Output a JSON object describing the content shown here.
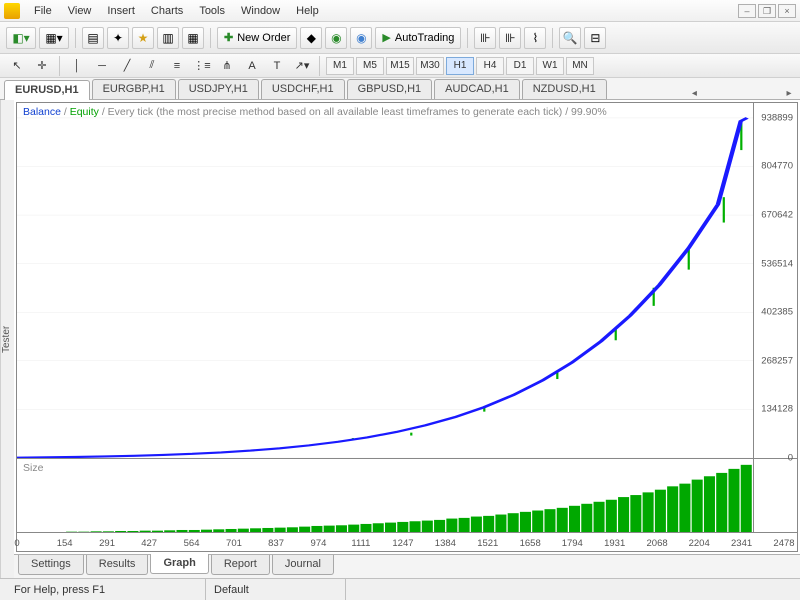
{
  "menubar": {
    "items": [
      "File",
      "View",
      "Insert",
      "Charts",
      "Tools",
      "Window",
      "Help"
    ]
  },
  "toolbar": {
    "new_order": "New Order",
    "auto_trading": "AutoTrading"
  },
  "timeframes": [
    "M1",
    "M5",
    "M15",
    "M30",
    "H1",
    "H4",
    "D1",
    "W1",
    "MN"
  ],
  "active_tf": "H1",
  "tabs": [
    "EURUSD,H1",
    "EURGBP,H1",
    "USDJPY,H1",
    "USDCHF,H1",
    "GBPUSD,H1",
    "AUDCAD,H1",
    "NZDUSD,H1"
  ],
  "active_tab": 0,
  "chart": {
    "balance_label": "Balance",
    "equity_label": "Equity",
    "rest_label": " / Every tick (the most precise method based on all available least timeframes to generate each tick) /  99.90%",
    "size_label": "Size",
    "y_ticks": [
      0,
      134128,
      268257,
      402385,
      536514,
      670642,
      804770,
      938899
    ],
    "y_max": 980000,
    "x_ticks": [
      0,
      154,
      291,
      427,
      564,
      701,
      837,
      974,
      1111,
      1247,
      1384,
      1521,
      1658,
      1794,
      1931,
      2068,
      2204,
      2341,
      2478
    ],
    "x_max": 2520,
    "line_color": "#1a1aff",
    "equity_color": "#00b000",
    "size_color": "#00a800",
    "grid_color": "#e8e8e8",
    "balance_points": [
      [
        0,
        1000
      ],
      [
        100,
        1800
      ],
      [
        200,
        2800
      ],
      [
        300,
        4200
      ],
      [
        400,
        6000
      ],
      [
        500,
        8500
      ],
      [
        600,
        11500
      ],
      [
        700,
        15500
      ],
      [
        800,
        20500
      ],
      [
        900,
        26800
      ],
      [
        1000,
        34800
      ],
      [
        1100,
        44800
      ],
      [
        1200,
        57000
      ],
      [
        1300,
        72000
      ],
      [
        1400,
        90500
      ],
      [
        1500,
        113000
      ],
      [
        1600,
        140500
      ],
      [
        1700,
        174000
      ],
      [
        1800,
        214500
      ],
      [
        1900,
        263500
      ],
      [
        2000,
        322500
      ],
      [
        2100,
        393500
      ],
      [
        2200,
        478500
      ],
      [
        2300,
        580000
      ],
      [
        2400,
        700000
      ],
      [
        2478,
        930000
      ],
      [
        2500,
        938899
      ]
    ],
    "equity_dips": [
      [
        1150,
        55000,
        50000
      ],
      [
        1350,
        70000,
        62000
      ],
      [
        1600,
        140000,
        128000
      ],
      [
        1850,
        240000,
        218000
      ],
      [
        2050,
        360000,
        325000
      ],
      [
        2180,
        470000,
        420000
      ],
      [
        2300,
        580000,
        520000
      ],
      [
        2420,
        720000,
        650000
      ],
      [
        2480,
        930000,
        850000
      ]
    ],
    "size_values": [
      0,
      0,
      0,
      0,
      0.5,
      0.5,
      1,
      1,
      1.5,
      1.5,
      2,
      2,
      2.5,
      3,
      3,
      3.5,
      4,
      4.5,
      5,
      5.5,
      6,
      6.5,
      7,
      8,
      9,
      9.5,
      10,
      11,
      12,
      13,
      14,
      15,
      16,
      17,
      18,
      20,
      21,
      23,
      24,
      26,
      28,
      30,
      32,
      34,
      36,
      39,
      42,
      45,
      48,
      52,
      55,
      59,
      63,
      68,
      72,
      78,
      83,
      88,
      94,
      100
    ],
    "size_max": 100
  },
  "bottom_tabs": [
    "Settings",
    "Results",
    "Graph",
    "Report",
    "Journal"
  ],
  "active_bottom_tab": 2,
  "sidebar_label": "Tester",
  "statusbar": {
    "help": "For Help, press F1",
    "profile": "Default"
  }
}
